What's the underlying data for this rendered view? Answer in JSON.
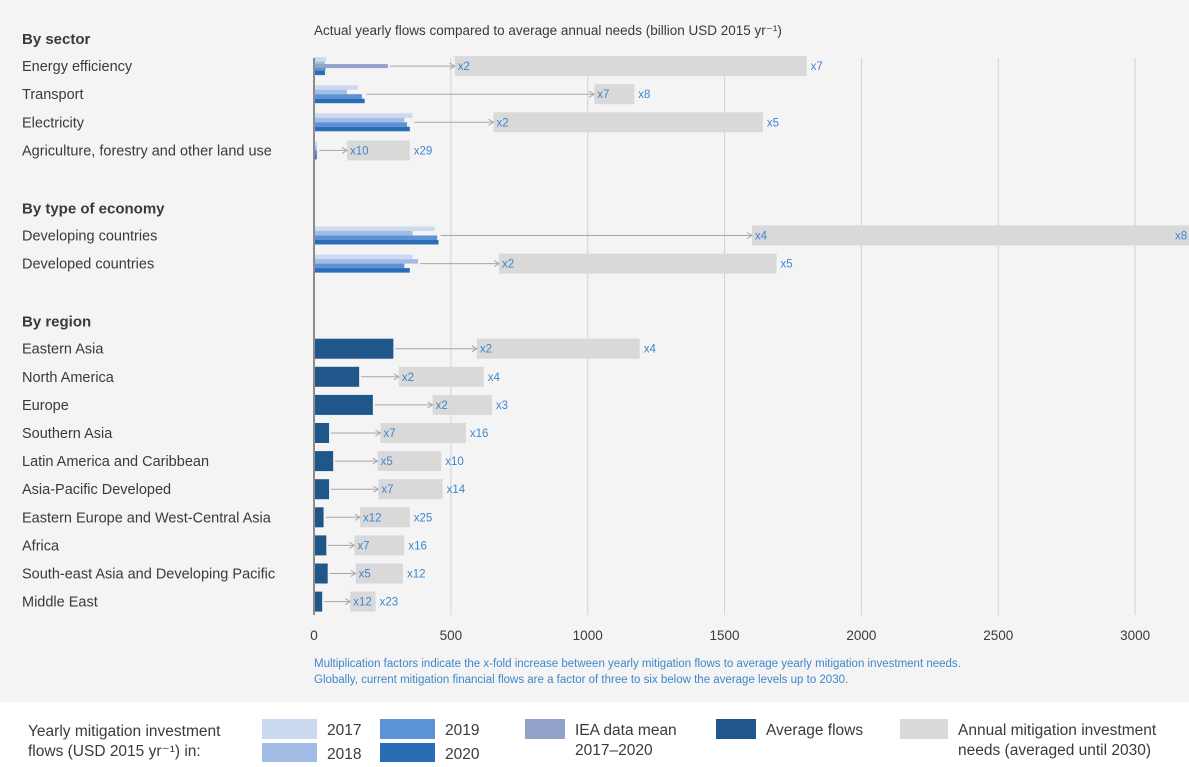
{
  "chart_data": {
    "type": "bar",
    "title": "Actual yearly flows compared to average annual needs (billion USD 2015 yr⁻¹)",
    "xlim": [
      0,
      3200
    ],
    "x_ticks": [
      0,
      500,
      1000,
      1500,
      2000,
      2500,
      3000
    ],
    "grid": true,
    "groups": [
      {
        "heading": "By sector",
        "rows": [
          {
            "label": "Energy efficiency",
            "flows": {
              "y2017": 45,
              "y2018": 40,
              "y2019": 42,
              "y2020": 40
            },
            "iea": 270,
            "need": 1800,
            "factor_low": "x2",
            "factor_high": "x7"
          },
          {
            "label": "Transport",
            "flows": {
              "y2017": 160,
              "y2018": 120,
              "y2019": 175,
              "y2020": 185
            },
            "need": 1170,
            "factor_low": "x7",
            "factor_high": "x8"
          },
          {
            "label": "Electricity",
            "flows": {
              "y2017": 360,
              "y2018": 330,
              "y2019": 340,
              "y2020": 350
            },
            "need": 1640,
            "factor_low": "x2",
            "factor_high": "x5"
          },
          {
            "label": "Agriculture, forestry and other land use",
            "flows": {
              "y2017": 12,
              "y2018": 10,
              "y2019": 11,
              "y2020": 10
            },
            "need": 350,
            "factor_low": "x10",
            "factor_high": "x29"
          }
        ]
      },
      {
        "heading": "By type of economy",
        "rows": [
          {
            "label": "Developing countries",
            "flows": {
              "y2017": 440,
              "y2018": 360,
              "y2019": 450,
              "y2020": 455
            },
            "need": 3200,
            "factor_low": "x4",
            "factor_high": "x8"
          },
          {
            "label": "Developed countries",
            "flows": {
              "y2017": 360,
              "y2018": 380,
              "y2019": 330,
              "y2020": 350
            },
            "need": 1690,
            "factor_low": "x2",
            "factor_high": "x5"
          }
        ]
      },
      {
        "heading": "By region",
        "rows": [
          {
            "label": "Eastern Asia",
            "avg": 290,
            "need": 1190,
            "factor_low": "x2",
            "factor_high": "x4"
          },
          {
            "label": "North America",
            "avg": 165,
            "need": 620,
            "factor_low": "x2",
            "factor_high": "x4"
          },
          {
            "label": "Europe",
            "avg": 215,
            "need": 650,
            "factor_low": "x2",
            "factor_high": "x3"
          },
          {
            "label": "Southern Asia",
            "avg": 55,
            "need": 555,
            "factor_low": "x7",
            "factor_high": "x16"
          },
          {
            "label": "Latin America and Caribbean",
            "avg": 70,
            "need": 465,
            "factor_low": "x5",
            "factor_high": "x10"
          },
          {
            "label": "Asia-Pacific Developed",
            "avg": 55,
            "need": 470,
            "factor_low": "x7",
            "factor_high": "x14"
          },
          {
            "label": "Eastern Europe and West-Central Asia",
            "avg": 35,
            "need": 350,
            "factor_low": "x12",
            "factor_high": "x25"
          },
          {
            "label": "Africa",
            "avg": 45,
            "need": 330,
            "factor_low": "x7",
            "factor_high": "x16"
          },
          {
            "label": "South-east Asia and Developing Pacific",
            "avg": 50,
            "need": 325,
            "factor_low": "x5",
            "factor_high": "x12"
          },
          {
            "label": "Middle East",
            "avg": 30,
            "need": 225,
            "factor_low": "x12",
            "factor_high": "x23"
          }
        ]
      }
    ],
    "note_lines": [
      "Multiplication factors indicate the x-fold increase between yearly mitigation flows to average yearly mitigation investment needs.",
      "Globally, current mitigation financial flows are a factor of three to six below the average levels up to 2030."
    ],
    "legend": {
      "title_lines": [
        "Yearly mitigation investment",
        "flows (USD 2015 yr⁻¹) in:"
      ],
      "entries": [
        {
          "key": "y2017",
          "lines": [
            "2017"
          ]
        },
        {
          "key": "y2018",
          "lines": [
            "2018"
          ]
        },
        {
          "key": "y2019",
          "lines": [
            "2019"
          ]
        },
        {
          "key": "y2020",
          "lines": [
            "2020"
          ]
        },
        {
          "key": "iea",
          "lines": [
            "IEA data mean",
            "2017–2020"
          ]
        },
        {
          "key": "avg",
          "lines": [
            "Average flows"
          ]
        },
        {
          "key": "need",
          "lines": [
            "Annual mitigation investment",
            "needs (averaged until 2030)"
          ]
        }
      ]
    },
    "colors": {
      "y2017": "#cbd9f1",
      "y2018": "#a3bce6",
      "y2019": "#5b93d4",
      "y2020": "#2a6cb5",
      "iea": "#93a2cb",
      "avg": "#1f578b",
      "need": "#d9d9d9",
      "factor": "#3f86cc",
      "panel": "#f4f4f4",
      "grid": "#d2d2d2",
      "axis": "#8c8c8c",
      "text": "#3a3a3a",
      "arrow": "#a6a6a6"
    }
  }
}
